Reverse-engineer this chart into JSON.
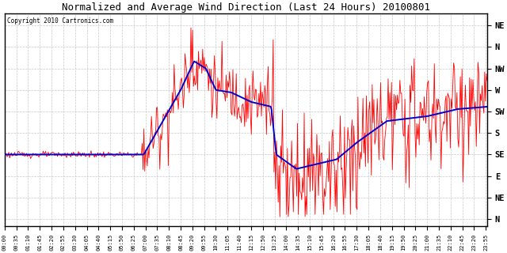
{
  "title": "Normalized and Average Wind Direction (Last 24 Hours) 20100801",
  "copyright": "Copyright 2010 Cartronics.com",
  "background_color": "#ffffff",
  "plot_bg_color": "#ffffff",
  "grid_color": "#c8c8c8",
  "ytick_labels": [
    "NE",
    "N",
    "NW",
    "W",
    "SW",
    "S",
    "SE",
    "E",
    "NE",
    "N"
  ],
  "ytick_values": [
    405,
    360,
    315,
    270,
    225,
    180,
    135,
    90,
    45,
    0
  ],
  "ylim": [
    -15,
    430
  ],
  "red_color": "#ff0000",
  "blue_color": "#0000cc",
  "total_minutes": 1440,
  "num_points": 576
}
